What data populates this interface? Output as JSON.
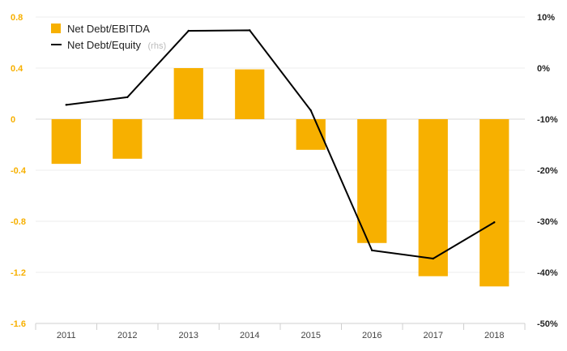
{
  "chart_data": {
    "type": "bar",
    "categories": [
      "2011",
      "2012",
      "2013",
      "2014",
      "2015",
      "2016",
      "2017",
      "2018"
    ],
    "series": [
      {
        "name": "Net Debt/EBITDA",
        "type": "bar",
        "axis": "left",
        "color": "#f7b000",
        "values": [
          -0.35,
          -0.31,
          0.4,
          0.39,
          -0.24,
          -0.97,
          -1.23,
          -1.31
        ]
      },
      {
        "name": "Net Debt/Equity",
        "name_suffix": "(rhs)",
        "type": "line",
        "axis": "right",
        "color": "#000000",
        "values": [
          -7.2,
          -5.7,
          7.3,
          7.4,
          -8.3,
          -35.7,
          -37.3,
          -30.2
        ]
      }
    ],
    "left_axis": {
      "ylim": [
        -1.6,
        0.8
      ],
      "ticks": [
        0.8,
        0.4,
        0,
        -0.4,
        -0.8,
        -1.2,
        -1.6
      ],
      "tick_labels": [
        "0.8",
        "0.4",
        "0",
        "-0.4",
        "-0.8",
        "-1.2",
        "-1.6"
      ],
      "color": "#f7b000"
    },
    "right_axis": {
      "ylim": [
        -50,
        10
      ],
      "ticks": [
        10,
        0,
        -10,
        -20,
        -30,
        -40,
        -50
      ],
      "tick_labels": [
        "10%",
        "0%",
        "-10%",
        "-20%",
        "-30%",
        "-40%",
        "-50%"
      ]
    },
    "grid": true,
    "legend_position": "top-left"
  }
}
